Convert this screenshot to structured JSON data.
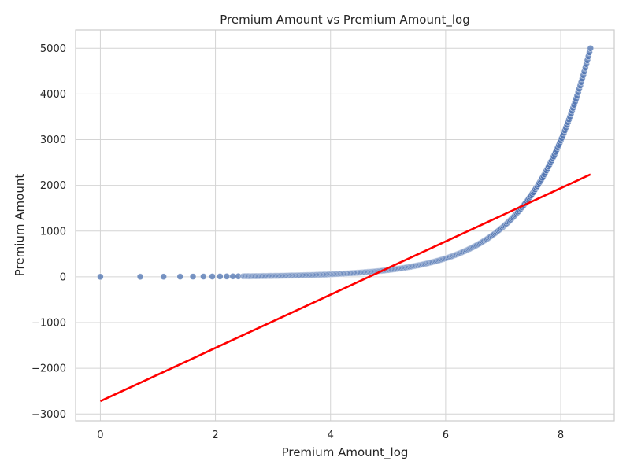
{
  "chart_data": {
    "type": "scatter",
    "title": "Premium Amount vs Premium Amount_log",
    "xlabel": "Premium Amount_log",
    "ylabel": "Premium Amount",
    "xlim": [
      -0.43,
      8.93
    ],
    "ylim": [
      -3150,
      5400
    ],
    "xticks": [
      0,
      2,
      4,
      6,
      8
    ],
    "yticks": [
      -3000,
      -2000,
      -1000,
      0,
      1000,
      2000,
      3000,
      4000,
      5000
    ],
    "grid": true,
    "legend": "none",
    "scatter_relation": "y = exp(x)",
    "scatter_x_range": [
      0,
      8.517
    ],
    "scatter_point_count": 340,
    "regression_line": {
      "x": [
        0,
        8.517
      ],
      "y": [
        -2720,
        2240
      ]
    },
    "colors": {
      "points": "#4c72b0",
      "regression": "#ff0000",
      "grid": "#d4d4d4",
      "frame": "#cccccc"
    }
  }
}
